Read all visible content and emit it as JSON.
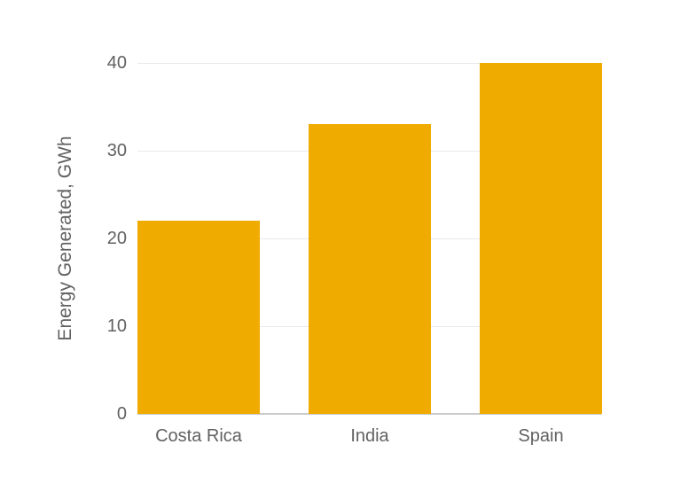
{
  "colors": {
    "bar": "#EFAB00",
    "text": "#616161",
    "gridline": "#E9E9E9",
    "baseline": "#CCCCCC",
    "background": "#FFFFFF"
  },
  "chart_data": {
    "type": "bar",
    "categories": [
      "Costa Rica",
      "India",
      "Spain"
    ],
    "values": [
      22,
      33,
      40
    ],
    "title": "",
    "xlabel": "",
    "ylabel": "Energy Generated, GWh",
    "ylim": [
      0,
      40
    ],
    "yticks": [
      0,
      10,
      20,
      30,
      40
    ],
    "grid": true,
    "legend": false
  }
}
